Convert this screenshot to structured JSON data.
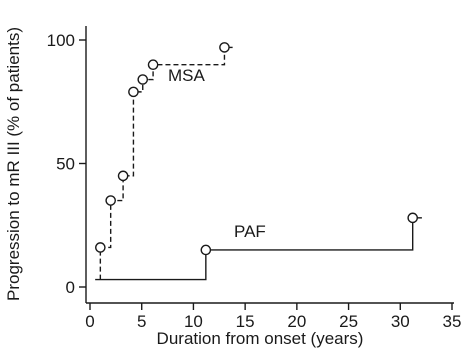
{
  "chart_data": {
    "type": "line",
    "title": "",
    "xlabel": "Duration from onset (years)",
    "ylabel": "Progression to mR III (% of patients)",
    "xlim": [
      0,
      35
    ],
    "ylim": [
      0,
      100
    ],
    "x_ticks": [
      0,
      5,
      10,
      15,
      20,
      25,
      30,
      35
    ],
    "y_ticks": [
      0,
      50,
      100
    ],
    "x_tick_labels": [
      "0",
      "5",
      "10",
      "15",
      "20",
      "25",
      "30",
      "35"
    ],
    "y_tick_labels": [
      "0",
      "50",
      "100"
    ],
    "grid": false,
    "series": [
      {
        "name": "MSA",
        "line_style": "dashed",
        "start": [
          1,
          3
        ],
        "events": [
          {
            "x": 1,
            "y": 16
          },
          {
            "x": 2,
            "y": 35
          },
          {
            "x": 3.2,
            "y": 45
          },
          {
            "x": 4.2,
            "y": 79
          },
          {
            "x": 5.1,
            "y": 84
          },
          {
            "x": 6.1,
            "y": 90
          },
          {
            "x": 13,
            "y": 97
          }
        ],
        "censored_at": [
          13.5
        ]
      },
      {
        "name": "PAF",
        "line_style": "solid",
        "start": [
          0.5,
          3
        ],
        "events": [
          {
            "x": 11.2,
            "y": 15
          },
          {
            "x": 31.2,
            "y": 28
          }
        ],
        "censored_at": [
          31.8
        ]
      }
    ]
  }
}
